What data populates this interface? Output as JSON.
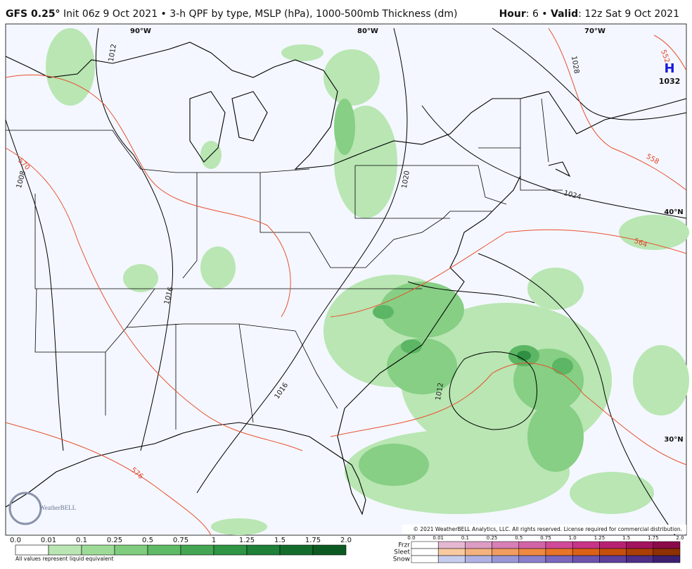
{
  "header": {
    "model": "GFS 0.25°",
    "title": "Init 06z 9 Oct 2021 • 3-h QPF by type, MSLP (hPa), 1000-500mb Thickness (dm)",
    "hour_label": "Hour",
    "hour_value": ": 6 •",
    "valid_label": "Valid",
    "valid_value": ": 12z Sat 9 Oct 2021"
  },
  "map": {
    "longitudes": [
      "90°W",
      "80°W",
      "70°W"
    ],
    "latitudes": [
      "40°N",
      "30°N"
    ],
    "isobar_labels": [
      "1012",
      "1008",
      "1016",
      "1020",
      "1024",
      "1028",
      "1012",
      "1016"
    ],
    "thickness_labels": [
      "570",
      "576",
      "558",
      "564",
      "552"
    ],
    "high": {
      "symbol": "H",
      "pressure": "1032"
    },
    "logo": "WeatherBELL",
    "copyright": "© 2021 WeatherBELL Analytics, LLC. All rights reserved. License required for commercial distribution."
  },
  "legend": {
    "qpf": {
      "ticks": [
        "0.0",
        "0.01",
        "0.1",
        "0.25",
        "0.5",
        "0.75",
        "1",
        "1.25",
        "1.5",
        "1.75",
        "2.0"
      ],
      "note": "All values represent liquid equivalent"
    },
    "ptype": {
      "rows": [
        "Frzr",
        "Sleet",
        "Snow"
      ],
      "ticks": [
        "0.0",
        "0.01",
        "0.1",
        "0.25",
        "0.5",
        "0.75",
        "1.0",
        "1.25",
        "1.5",
        "1.75",
        "2.0"
      ]
    }
  }
}
